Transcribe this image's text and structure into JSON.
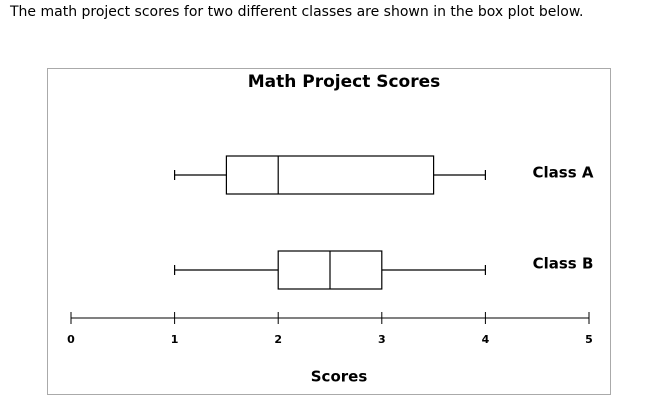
{
  "question": "The math project scores for two different classes are shown in the box plot below.",
  "chart_data": {
    "type": "box",
    "title": "Math Project Scores",
    "x_label": "Scores",
    "xlim": [
      0,
      5
    ],
    "xticks": [
      0,
      1,
      2,
      3,
      4,
      5
    ],
    "series": [
      {
        "name": "Class A",
        "color": "#000000",
        "min": 1,
        "q1": 1.5,
        "median": 2,
        "q3": 3.5,
        "max": 4
      },
      {
        "name": "Class B",
        "color": "#000000",
        "min": 1,
        "q1": 2,
        "median": 2.5,
        "q3": 3,
        "max": 4
      }
    ]
  }
}
